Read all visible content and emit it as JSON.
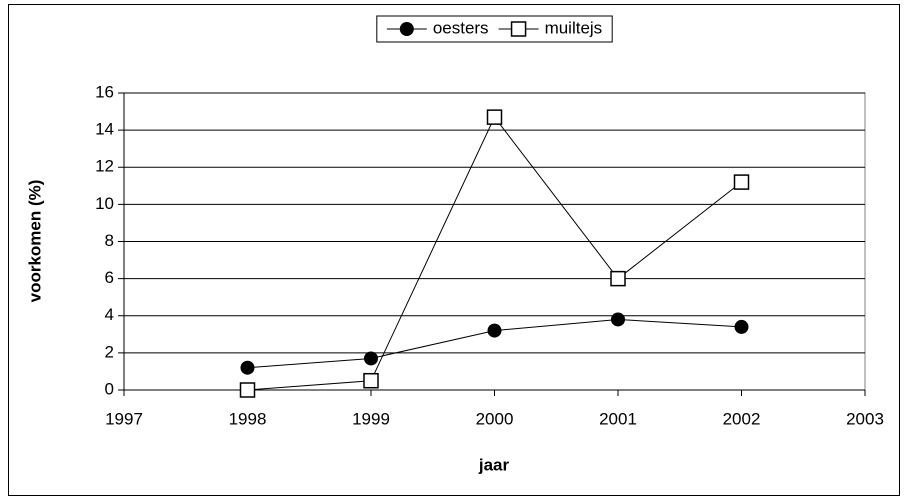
{
  "chart_data": {
    "type": "line",
    "x_label": "jaar",
    "y_label": "voorkomen (%)",
    "x": [
      1998,
      1999,
      2000,
      2001,
      2002
    ],
    "series": [
      {
        "name": "oesters",
        "color": "#000000",
        "marker": "circle",
        "values": [
          1.2,
          1.7,
          3.2,
          3.8,
          3.4
        ]
      },
      {
        "name": "muiltejs",
        "color": "#000000",
        "marker": "square",
        "values": [
          0,
          0.5,
          14.7,
          6.0,
          11.2
        ]
      }
    ],
    "xlim": [
      1997,
      2003
    ],
    "xticks": [
      1997,
      1998,
      1999,
      2000,
      2001,
      2002,
      2003
    ],
    "ylim": [
      0,
      16
    ],
    "yticks": [
      0,
      2,
      4,
      6,
      8,
      10,
      12,
      14,
      16
    ],
    "grid": true,
    "legend": "top"
  }
}
